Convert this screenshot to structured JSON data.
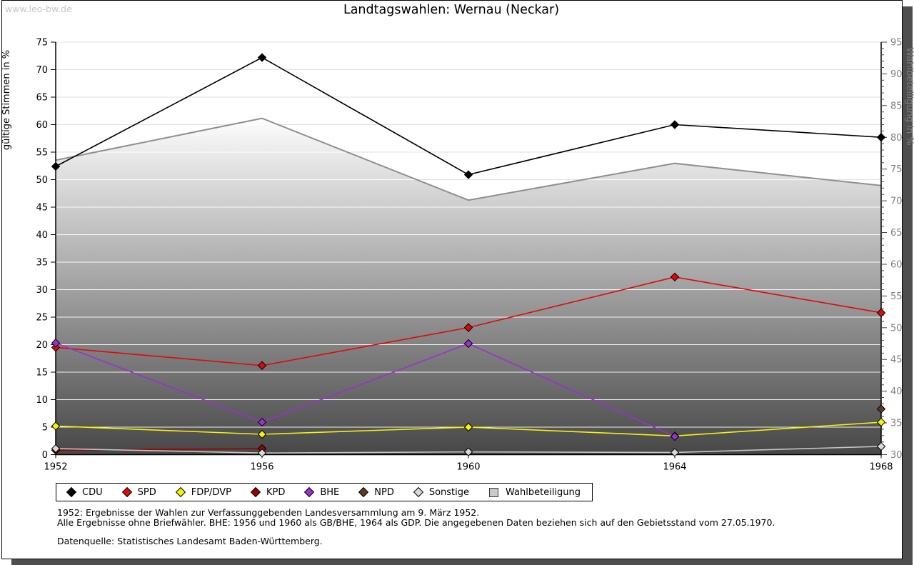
{
  "watermark": "www.leo-bw.de",
  "title": "Landtagswahlen: Wernau (Neckar)",
  "notes": {
    "line1": "1952: Ergebnisse der Wahlen zur Verfassunggebenden Landesversammlung am 9. März 1952.",
    "line2": "Alle Ergebnisse ohne Briefwähler. BHE: 1956 und 1960 als GB/BHE, 1964 als GDP. Die angegebenen Daten beziehen sich auf den Gebietsstand vom 27.05.1970.",
    "source": "Datenquelle: Statistisches Landesamt Baden-Württemberg."
  },
  "chart_data": {
    "type": "line",
    "title": "Landtagswahlen: Wernau (Neckar)",
    "x": [
      1952,
      1956,
      1960,
      1964,
      1968
    ],
    "left_axis": {
      "label": "gültige Stimmen in %",
      "min": 0,
      "max": 75,
      "tick_step": 5
    },
    "right_axis": {
      "label": "Wahlbeteiligung in %",
      "min": 30,
      "max": 95,
      "tick_step": 5,
      "minor_tick_step": 1
    },
    "grid": true,
    "legend_position": "bottom",
    "series": [
      {
        "name": "CDU",
        "color": "#000000",
        "values": [
          52.4,
          72.2,
          50.9,
          60.0,
          57.7
        ]
      },
      {
        "name": "SPD",
        "color": "#dd0a0a",
        "values": [
          19.5,
          16.2,
          23.1,
          32.3,
          25.8
        ]
      },
      {
        "name": "FDP/DVP",
        "color": "#f2f20a",
        "values": [
          5.2,
          3.7,
          5.0,
          3.4,
          5.9
        ]
      },
      {
        "name": "KPD",
        "color": "#9b0000",
        "values": [
          0.8,
          1.1,
          null,
          null,
          null
        ]
      },
      {
        "name": "BHE",
        "color": "#9932cc",
        "values": [
          20.3,
          5.9,
          20.2,
          3.3,
          null
        ]
      },
      {
        "name": "NPD",
        "color": "#5e3a1e",
        "values": [
          null,
          null,
          null,
          null,
          8.3
        ]
      },
      {
        "name": "Sonstige",
        "color": "#d8d8d8",
        "line_color": "#c4c4c4",
        "values": [
          1.1,
          0.3,
          0.5,
          0.4,
          1.5
        ]
      }
    ],
    "turnout_series": {
      "name": "Wahlbeteiligung",
      "axis": "right",
      "style": "filled-area-gradient",
      "edge_color": "#8f8f8f",
      "values": [
        76.4,
        83.0,
        70.1,
        75.9,
        72.4
      ]
    }
  }
}
